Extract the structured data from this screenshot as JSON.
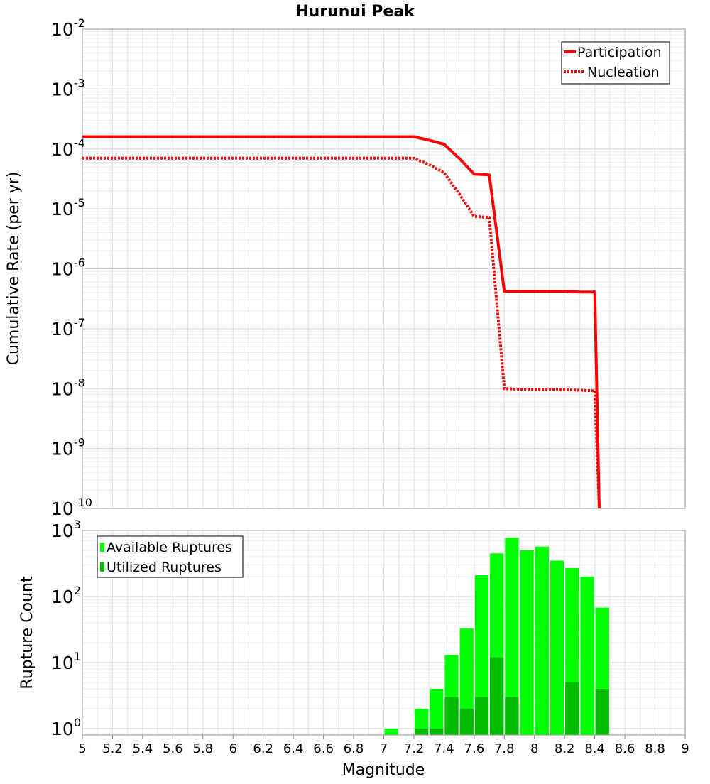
{
  "chart_data": [
    {
      "type": "line",
      "title": "Hurunui Peak",
      "xlabel": "",
      "ylabel": "Cumulative Rate (per yr)",
      "xlim": [
        5,
        9
      ],
      "ylim": [
        1e-10,
        0.01
      ],
      "yscale": "log",
      "grid": true,
      "legend_position": "top-right",
      "y_tick_labels": [
        {
          "base": "10",
          "exp": "-10"
        },
        {
          "base": "10",
          "exp": "-9"
        },
        {
          "base": "10",
          "exp": "-8"
        },
        {
          "base": "10",
          "exp": "-7"
        },
        {
          "base": "10",
          "exp": "-6"
        },
        {
          "base": "10",
          "exp": "-5"
        },
        {
          "base": "10",
          "exp": "-4"
        },
        {
          "base": "10",
          "exp": "-3"
        },
        {
          "base": "10",
          "exp": "-2"
        }
      ],
      "series": [
        {
          "name": "Participation",
          "style": "solid",
          "color": "#ff0000",
          "x": [
            5.0,
            7.2,
            7.3,
            7.4,
            7.5,
            7.6,
            7.7,
            7.8,
            7.9,
            8.0,
            8.1,
            8.2,
            8.3,
            8.4,
            8.43
          ],
          "y": [
            0.00016,
            0.00016,
            0.00014,
            0.00012,
            7e-05,
            3.8e-05,
            3.7e-05,
            4.2e-07,
            4.2e-07,
            4.2e-07,
            4.2e-07,
            4.2e-07,
            4.1e-07,
            4.1e-07,
            1e-10
          ]
        },
        {
          "name": "Nucleation",
          "style": "dotted",
          "color": "#ff0000",
          "x": [
            5.0,
            7.2,
            7.3,
            7.4,
            7.5,
            7.6,
            7.7,
            7.8,
            7.9,
            8.0,
            8.1,
            8.2,
            8.3,
            8.4,
            8.43
          ],
          "y": [
            7e-05,
            7e-05,
            5.5e-05,
            4e-05,
            1.8e-05,
            7.5e-06,
            7.2e-06,
            1e-08,
            9.8e-09,
            9.8e-09,
            9.8e-09,
            9.6e-09,
            9.4e-09,
            9.2e-09,
            1e-10
          ]
        }
      ]
    },
    {
      "type": "bar",
      "title": "",
      "xlabel": "Magnitude",
      "ylabel": "Rupture Count",
      "xlim": [
        5,
        9
      ],
      "ylim": [
        0.8,
        1000
      ],
      "yscale": "log",
      "grid": true,
      "legend_position": "top-left",
      "x_ticks": [
        "5",
        "5.2",
        "5.4",
        "5.6",
        "5.8",
        "6",
        "6.2",
        "6.4",
        "6.6",
        "6.8",
        "7",
        "7.2",
        "7.4",
        "7.6",
        "7.8",
        "8",
        "8.2",
        "8.4",
        "8.6",
        "8.8",
        "9"
      ],
      "y_tick_labels": [
        {
          "base": "10",
          "exp": "0"
        },
        {
          "base": "10",
          "exp": "1"
        },
        {
          "base": "10",
          "exp": "2"
        },
        {
          "base": "10",
          "exp": "3"
        }
      ],
      "bin_width": 0.1,
      "series": [
        {
          "name": "Available Ruptures",
          "color": "#00ff00",
          "x": [
            7.05,
            7.25,
            7.35,
            7.45,
            7.55,
            7.65,
            7.75,
            7.85,
            7.95,
            8.05,
            8.15,
            8.25,
            8.35,
            8.45
          ],
          "values": [
            1,
            2,
            4,
            13,
            33,
            210,
            450,
            780,
            500,
            570,
            350,
            270,
            200,
            68
          ]
        },
        {
          "name": "Utilized Ruptures",
          "color": "#00bb00",
          "x": [
            7.25,
            7.35,
            7.45,
            7.55,
            7.65,
            7.75,
            7.85,
            8.25,
            8.45
          ],
          "values": [
            1,
            1,
            3,
            2,
            3,
            12,
            3,
            5,
            4
          ]
        }
      ]
    }
  ]
}
